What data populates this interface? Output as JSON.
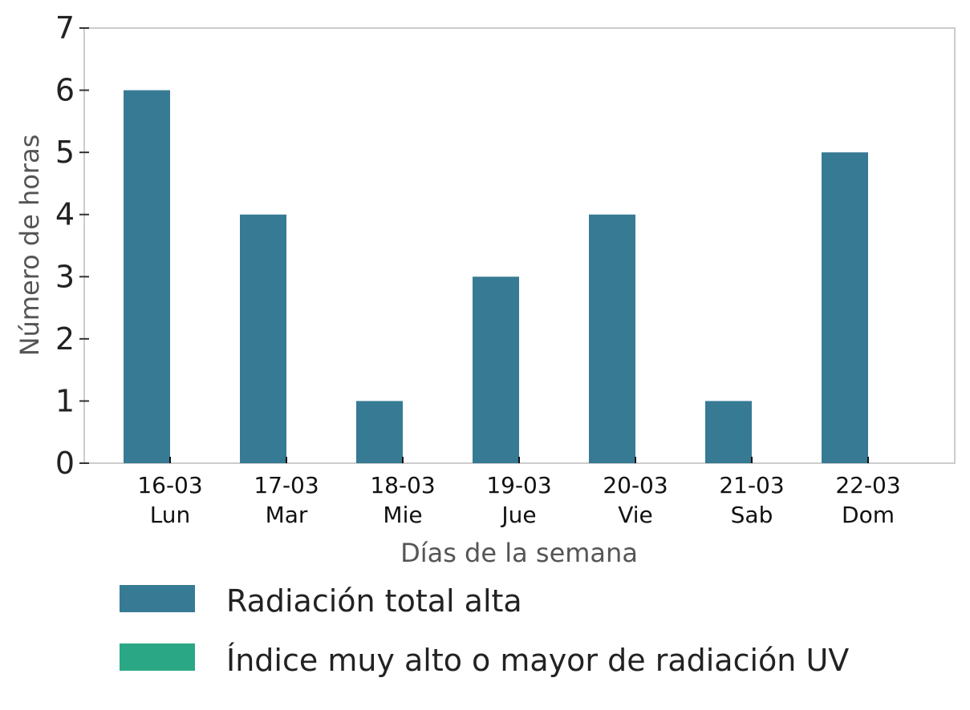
{
  "chart_data": {
    "type": "bar",
    "categories": [
      {
        "date": "16-03",
        "day": "Lun"
      },
      {
        "date": "17-03",
        "day": "Mar"
      },
      {
        "date": "18-03",
        "day": "Mie"
      },
      {
        "date": "19-03",
        "day": "Jue"
      },
      {
        "date": "20-03",
        "day": "Vie"
      },
      {
        "date": "21-03",
        "day": "Sab"
      },
      {
        "date": "22-03",
        "day": "Dom"
      }
    ],
    "series": [
      {
        "name": "Radiación total alta",
        "color": "#377a94",
        "values": [
          6,
          4,
          1,
          3,
          4,
          1,
          5
        ]
      },
      {
        "name": "Índice muy alto o mayor de radiación UV",
        "color": "#2aa886",
        "values": [
          0,
          0,
          0,
          0,
          0,
          0,
          0
        ]
      }
    ],
    "xlabel": "Días de la semana",
    "ylabel": "Número de horas",
    "ylim": [
      0,
      7
    ],
    "yticks": [
      "0",
      "1",
      "2",
      "3",
      "4",
      "5",
      "6",
      "7"
    ],
    "grid": false,
    "legend_position": "bottom"
  }
}
